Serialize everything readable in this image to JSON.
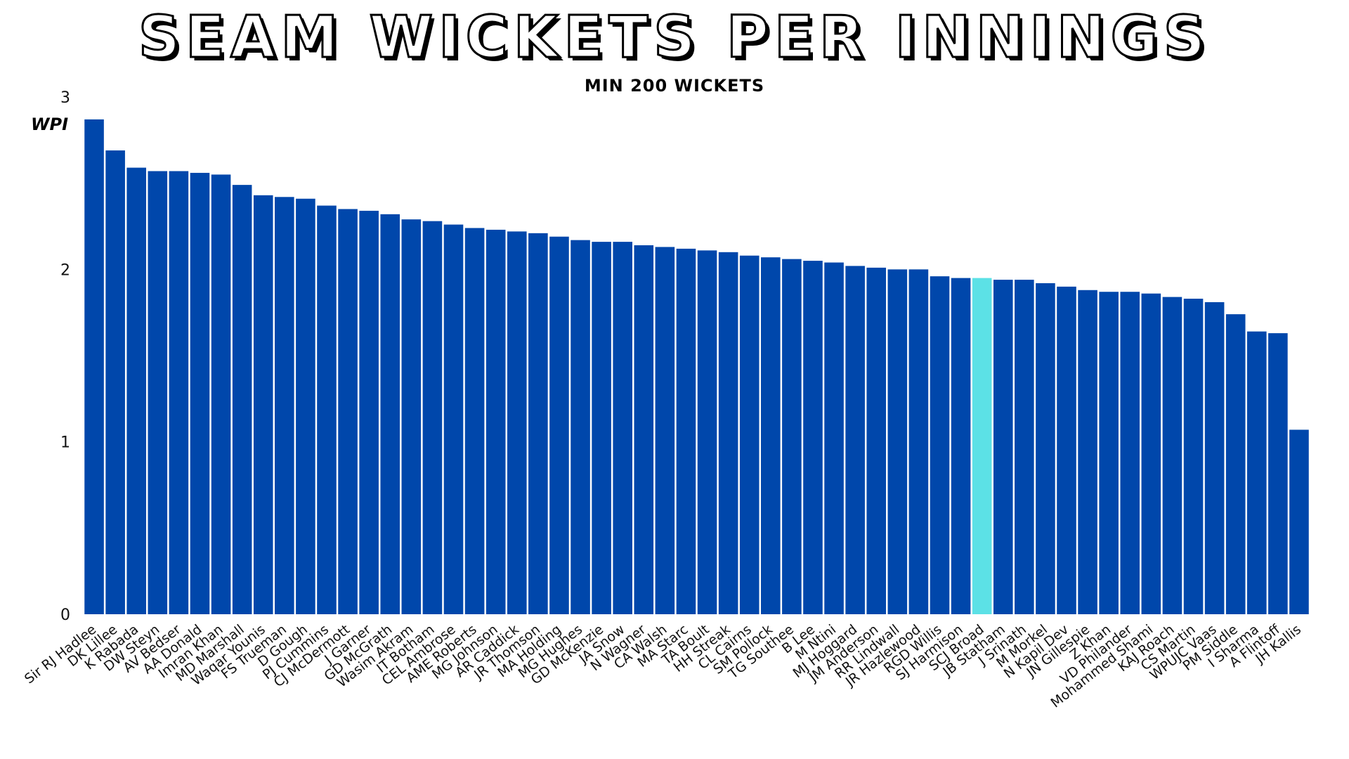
{
  "chart_data": {
    "type": "bar",
    "title": "SEAM WICKETS PER INNINGS",
    "subtitle": "MIN 200 WICKETS",
    "ylabel": "WPI",
    "xlabel": "",
    "ylim": [
      0,
      3
    ],
    "yticks": [
      "0",
      "1",
      "2",
      "3"
    ],
    "grid": false,
    "legend": "none",
    "bar_color": "#0047ab",
    "highlight_color": "#5ce1e6",
    "highlight_category": "SCJ Broad",
    "categories": [
      "Sir RJ Hadlee",
      "DK Lillee",
      "K Rabada",
      "DW Steyn",
      "AV Bedser",
      "AA Donald",
      "Imran Khan",
      "MD Marshall",
      "Waqar Younis",
      "FS Trueman",
      "D Gough",
      "PJ Cummins",
      "CJ McDermott",
      "J Garner",
      "GD McGrath",
      "Wasim Akram",
      "IT Botham",
      "CEL Ambrose",
      "AME Roberts",
      "MG Johnson",
      "AR Caddick",
      "JR Thomson",
      "MA Holding",
      "MG Hughes",
      "GD McKenzie",
      "JA Snow",
      "N Wagner",
      "CA Walsh",
      "MA Starc",
      "TA Boult",
      "HH Streak",
      "CL Cairns",
      "SM Pollock",
      "TG Southee",
      "B Lee",
      "M Ntini",
      "MJ Hoggard",
      "JM Anderson",
      "RR Lindwall",
      "JR Hazlewood",
      "RGD Willis",
      "SJ Harmison",
      "SCJ Broad",
      "JB Statham",
      "J Srinath",
      "M Morkel",
      "N Kapil Dev",
      "JN Gillespie",
      "Z Khan",
      "VD Philander",
      "Mohammed Shami",
      "KAJ Roach",
      "CS Martin",
      "WPUJC Vaas",
      "PM Siddle",
      "I Sharma",
      "A Flintoff",
      "JH Kallis"
    ],
    "values": [
      2.87,
      2.69,
      2.59,
      2.57,
      2.57,
      2.56,
      2.55,
      2.49,
      2.43,
      2.42,
      2.41,
      2.37,
      2.35,
      2.34,
      2.32,
      2.29,
      2.28,
      2.26,
      2.24,
      2.23,
      2.22,
      2.21,
      2.19,
      2.17,
      2.16,
      2.16,
      2.14,
      2.13,
      2.12,
      2.11,
      2.1,
      2.08,
      2.07,
      2.06,
      2.05,
      2.04,
      2.02,
      2.01,
      2.0,
      2.0,
      1.96,
      1.95,
      1.95,
      1.94,
      1.94,
      1.92,
      1.9,
      1.88,
      1.87,
      1.87,
      1.86,
      1.84,
      1.83,
      1.81,
      1.74,
      1.64,
      1.63,
      1.07
    ]
  }
}
